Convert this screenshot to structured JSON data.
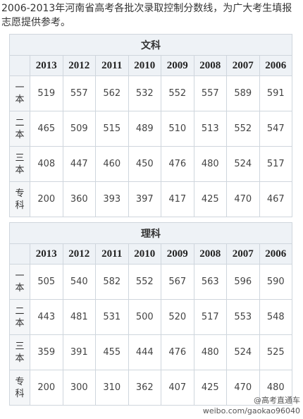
{
  "intro": "2006-2013年河南省高考各批次录取控制分数线，为广大考生填报志愿提供参考。",
  "sections": [
    {
      "title": "文科",
      "years": [
        "2013",
        "2012",
        "2011",
        "2010",
        "2009",
        "2008",
        "2007",
        "2006"
      ],
      "rows": [
        {
          "label": "一本",
          "values": [
            519,
            557,
            562,
            532,
            552,
            557,
            589,
            591
          ]
        },
        {
          "label": "二本",
          "values": [
            465,
            509,
            515,
            489,
            510,
            513,
            552,
            547
          ]
        },
        {
          "label": "三本",
          "values": [
            408,
            447,
            460,
            450,
            476,
            480,
            524,
            517
          ]
        },
        {
          "label": "专科",
          "values": [
            200,
            360,
            393,
            397,
            417,
            425,
            470,
            467
          ]
        }
      ]
    },
    {
      "title": "理科",
      "years": [
        "2013",
        "2012",
        "2011",
        "2010",
        "2009",
        "2008",
        "2007",
        "2006"
      ],
      "rows": [
        {
          "label": "一本",
          "values": [
            505,
            540,
            582,
            552,
            567,
            563,
            596,
            590
          ]
        },
        {
          "label": "二本",
          "values": [
            443,
            481,
            531,
            500,
            520,
            517,
            553,
            548
          ]
        },
        {
          "label": "三本",
          "values": [
            359,
            391,
            455,
            444,
            476,
            480,
            524,
            525
          ]
        },
        {
          "label": "专科",
          "values": [
            200,
            300,
            310,
            362,
            407,
            425,
            470,
            480
          ]
        }
      ]
    }
  ],
  "watermark": {
    "handle": "@高考直通车",
    "url": "weibo.com/gaokao96040"
  }
}
